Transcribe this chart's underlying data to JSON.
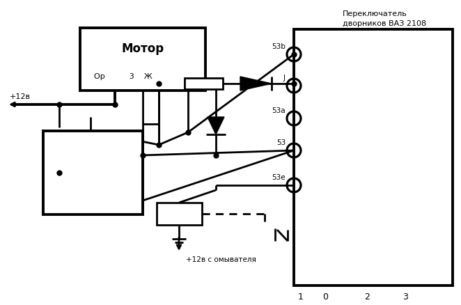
{
  "bg_color": "#ffffff",
  "lw": 2.0,
  "tlw": 2.8,
  "motor_label": "Мотор",
  "motor_sublabel": "Ор          3    Ж",
  "switch_label1": "Переключатель",
  "switch_label2": "дворников ВАЗ 2108",
  "plus12v": "+12в",
  "plus12v_omyv": "+12в с омывателя",
  "term_labels": [
    "53b",
    "J",
    "53a",
    "53",
    "53e"
  ],
  "bot_labels": [
    "1",
    "0",
    "2",
    "3"
  ]
}
